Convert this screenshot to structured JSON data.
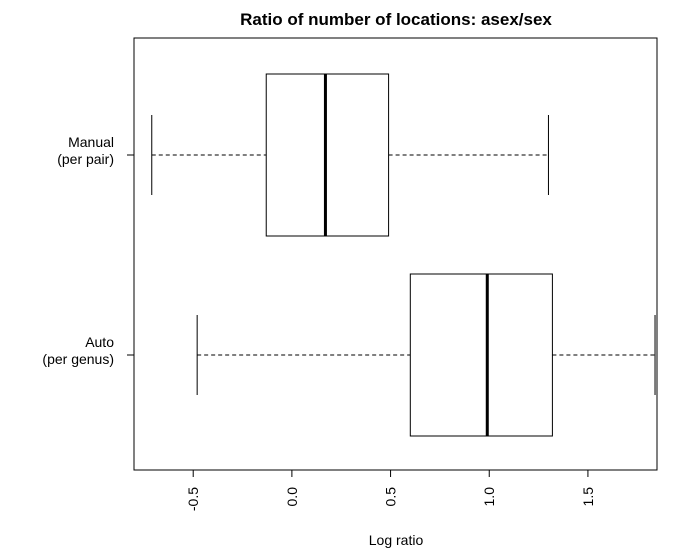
{
  "chart_data": {
    "type": "boxplot",
    "orientation": "horizontal",
    "title": "Ratio of number of locations: asex/sex",
    "xlabel": "Log ratio",
    "ylabel": "",
    "xlim": [
      -0.8,
      1.85
    ],
    "xticks": [
      -0.5,
      0.0,
      0.5,
      1.0,
      1.5
    ],
    "xtick_labels": [
      "-0.5",
      "0.0",
      "0.5",
      "1.0",
      "1.5"
    ],
    "grid": false,
    "categories": [
      {
        "lines": [
          "Manual",
          "(per pair)"
        ]
      },
      {
        "lines": [
          "Auto",
          "(per genus)"
        ]
      }
    ],
    "boxes": [
      {
        "whisker_low": -0.71,
        "q1": -0.13,
        "median": 0.17,
        "q3": 0.49,
        "whisker_high": 1.3
      },
      {
        "whisker_low": -0.48,
        "q1": 0.6,
        "median": 0.99,
        "q3": 1.32,
        "whisker_high": 1.84
      }
    ]
  }
}
